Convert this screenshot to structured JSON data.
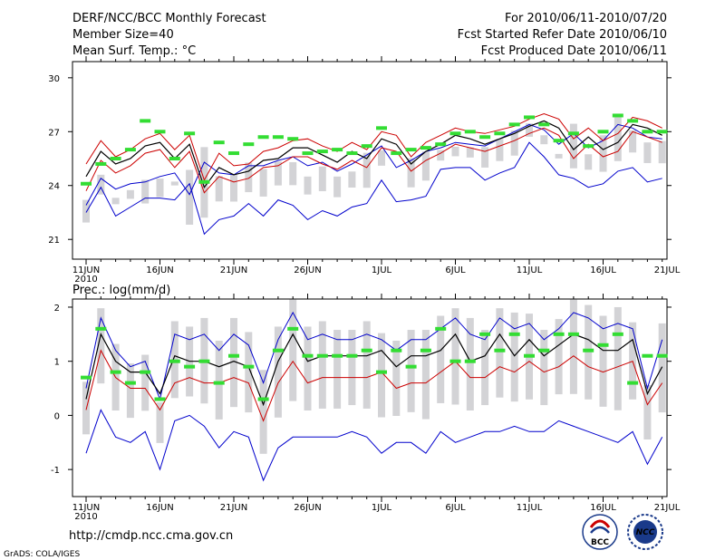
{
  "header": {
    "title": "DERF/NCC/BCC Monthly Forecast",
    "member_size": "Member Size=40",
    "variable": "Mean Surf. Temp.: °C",
    "period": "For 2010/06/11-2010/07/20",
    "started": "Fcst Started Refer Date 2010/06/10",
    "produced": "Fcst Produced Date 2010/06/11"
  },
  "url": "http://cmdp.ncc.cma.gov.cn",
  "credit": "GrADS: COLA/IGES",
  "logos": {
    "bcc": "BCC",
    "ncc": "NCC"
  },
  "colors": {
    "ensemble_mean": "#000000",
    "std_band": "#cc0000",
    "extremes": "#0000cc",
    "box": "#d3d3d6",
    "observed": "#33dd33"
  },
  "x_tick_labels": [
    "11JUN",
    "16JUN",
    "21JUN",
    "26JUN",
    "1JUL",
    "6JUL",
    "11JUL",
    "16JUL",
    "21JUL"
  ],
  "x_year_label": "2010",
  "chart_data": [
    {
      "type": "line",
      "title": "Mean Surf. Temp.: °C",
      "xlabel": "",
      "ylabel": "°C",
      "x": [
        "11JUN",
        "12JUN",
        "13JUN",
        "14JUN",
        "15JUN",
        "16JUN",
        "17JUN",
        "18JUN",
        "19JUN",
        "20JUN",
        "21JUN",
        "22JUN",
        "23JUN",
        "24JUN",
        "25JUN",
        "26JUN",
        "27JUN",
        "28JUN",
        "29JUN",
        "30JUN",
        "1JUL",
        "2JUL",
        "3JUL",
        "4JUL",
        "5JUL",
        "6JUL",
        "7JUL",
        "8JUL",
        "9JUL",
        "10JUL",
        "11JUL",
        "12JUL",
        "13JUL",
        "14JUL",
        "15JUL",
        "16JUL",
        "17JUL",
        "18JUL",
        "19JUL",
        "20JUL"
      ],
      "ylim": [
        19.9,
        30.9
      ],
      "yticks": [
        21,
        24,
        27,
        30
      ],
      "series": [
        {
          "name": "max",
          "values": [
            22.9,
            24.4,
            23.8,
            24.1,
            24.2,
            24.5,
            24.7,
            23.5,
            25.3,
            24.7,
            24.6,
            25.1,
            25.1,
            25.4,
            25.6,
            25.1,
            25.3,
            24.8,
            25.2,
            25.7,
            26.2,
            25.0,
            25.4,
            25.9,
            26.1,
            26.4,
            26.3,
            26.2,
            26.6,
            27.0,
            27.4,
            27.1,
            26.3,
            26.9,
            26.1,
            26.5,
            27.4,
            27.2,
            26.7,
            26.6
          ]
        },
        {
          "name": "mean_plus_sd",
          "values": [
            25.2,
            26.5,
            25.6,
            26.0,
            26.6,
            26.9,
            26.0,
            26.8,
            24.3,
            25.8,
            25.1,
            25.2,
            25.9,
            26.1,
            26.5,
            26.6,
            26.2,
            25.9,
            26.4,
            26.0,
            27.0,
            26.8,
            25.6,
            26.4,
            26.8,
            27.2,
            27.0,
            26.9,
            27.1,
            27.3,
            27.7,
            28.0,
            27.7,
            26.6,
            27.2,
            26.5,
            26.9,
            27.8,
            27.6,
            27.2
          ]
        },
        {
          "name": "ensemble_mean",
          "values": [
            24.5,
            25.9,
            25.2,
            25.5,
            26.2,
            26.4,
            25.5,
            26.3,
            23.9,
            25.0,
            24.6,
            24.8,
            25.4,
            25.5,
            26.1,
            26.1,
            25.7,
            25.3,
            25.9,
            25.5,
            26.6,
            26.3,
            25.2,
            25.9,
            26.3,
            26.8,
            26.6,
            26.3,
            26.6,
            26.9,
            27.3,
            27.6,
            27.2,
            26.0,
            26.7,
            26.0,
            26.4,
            27.4,
            27.2,
            26.8
          ]
        },
        {
          "name": "mean_minus_sd",
          "values": [
            23.7,
            25.4,
            24.7,
            25.1,
            25.8,
            26.0,
            25.0,
            25.9,
            23.6,
            24.5,
            24.2,
            24.4,
            25.0,
            25.1,
            25.6,
            25.6,
            25.2,
            24.9,
            25.4,
            25.0,
            26.1,
            25.9,
            24.8,
            25.4,
            25.8,
            26.3,
            26.1,
            25.9,
            26.2,
            26.5,
            26.9,
            27.2,
            26.8,
            25.5,
            26.3,
            25.6,
            25.9,
            27.0,
            26.7,
            26.4
          ]
        },
        {
          "name": "min",
          "values": [
            22.5,
            23.9,
            22.3,
            22.8,
            23.3,
            23.3,
            23.2,
            24.1,
            21.3,
            22.1,
            22.3,
            23.0,
            22.3,
            23.2,
            22.9,
            22.1,
            22.6,
            22.3,
            22.8,
            23.0,
            24.3,
            23.1,
            23.2,
            23.4,
            24.9,
            25.0,
            25.0,
            24.3,
            24.7,
            25.0,
            26.4,
            25.6,
            24.6,
            24.4,
            23.9,
            24.1,
            24.8,
            25.0,
            24.2,
            24.4
          ]
        },
        {
          "name": "observed",
          "values": [
            24.1,
            25.2,
            25.5,
            26.0,
            27.6,
            27.0,
            25.5,
            26.9,
            24.2,
            26.4,
            25.8,
            26.3,
            26.7,
            26.7,
            26.6,
            25.8,
            25.9,
            26.0,
            25.8,
            26.2,
            27.2,
            25.8,
            26.0,
            26.1,
            26.3,
            26.9,
            27.0,
            26.7,
            26.9,
            27.4,
            27.8,
            27.4,
            26.5,
            26.9,
            26.2,
            27.0,
            27.9,
            27.6,
            27.0,
            27.0
          ]
        }
      ]
    },
    {
      "type": "line",
      "title": "Prec.: log(mm/d)",
      "xlabel": "",
      "ylabel": "log(mm/d)",
      "x": [
        "11JUN",
        "12JUN",
        "13JUN",
        "14JUN",
        "15JUN",
        "16JUN",
        "17JUN",
        "18JUN",
        "19JUN",
        "20JUN",
        "21JUN",
        "22JUN",
        "23JUN",
        "24JUN",
        "25JUN",
        "26JUN",
        "27JUN",
        "28JUN",
        "29JUN",
        "30JUN",
        "1JUL",
        "2JUL",
        "3JUL",
        "4JUL",
        "5JUL",
        "6JUL",
        "7JUL",
        "8JUL",
        "9JUL",
        "10JUL",
        "11JUL",
        "12JUL",
        "13JUL",
        "14JUL",
        "15JUL",
        "16JUL",
        "17JUL",
        "18JUL",
        "19JUL",
        "20JUL"
      ],
      "ylim": [
        -1.5,
        2.15
      ],
      "yticks": [
        -1,
        0,
        1,
        2
      ],
      "series": [
        {
          "name": "max",
          "values": [
            0.5,
            1.8,
            1.2,
            0.9,
            1.0,
            0.3,
            1.5,
            1.4,
            1.5,
            1.2,
            1.5,
            1.3,
            0.6,
            1.4,
            1.9,
            1.4,
            1.5,
            1.4,
            1.4,
            1.5,
            1.4,
            1.2,
            1.4,
            1.4,
            1.6,
            1.8,
            1.5,
            1.4,
            1.8,
            1.6,
            1.7,
            1.4,
            1.6,
            1.9,
            1.8,
            1.6,
            1.7,
            1.6,
            0.5,
            1.4
          ]
        },
        {
          "name": "ensemble_mean",
          "values": [
            0.3,
            1.5,
            1.0,
            0.8,
            0.8,
            0.4,
            1.1,
            1.0,
            1.0,
            0.9,
            1.0,
            0.9,
            0.2,
            1.0,
            1.5,
            1.0,
            1.1,
            1.1,
            1.1,
            1.1,
            1.2,
            0.9,
            1.1,
            1.1,
            1.2,
            1.5,
            1.0,
            1.1,
            1.5,
            1.1,
            1.4,
            1.1,
            1.3,
            1.5,
            1.4,
            1.2,
            1.2,
            1.4,
            0.4,
            0.9
          ]
        },
        {
          "name": "mean_minus_sd",
          "values": [
            0.1,
            1.2,
            0.7,
            0.5,
            0.5,
            0.1,
            0.6,
            0.7,
            0.6,
            0.6,
            0.7,
            0.6,
            -0.1,
            0.6,
            1.0,
            0.6,
            0.7,
            0.7,
            0.7,
            0.7,
            0.8,
            0.5,
            0.6,
            0.6,
            0.8,
            1.0,
            0.7,
            0.7,
            0.9,
            0.8,
            1.0,
            0.8,
            0.9,
            1.1,
            0.9,
            0.8,
            0.9,
            1.0,
            0.2,
            0.6
          ]
        },
        {
          "name": "min",
          "values": [
            -0.7,
            0.1,
            -0.4,
            -0.5,
            -0.3,
            -1.0,
            -0.1,
            0.0,
            -0.2,
            -0.6,
            -0.3,
            -0.4,
            -1.2,
            -0.6,
            -0.4,
            -0.4,
            -0.4,
            -0.4,
            -0.3,
            -0.4,
            -0.7,
            -0.5,
            -0.5,
            -0.7,
            -0.3,
            -0.5,
            -0.4,
            -0.3,
            -0.3,
            -0.2,
            -0.3,
            -0.3,
            -0.1,
            -0.2,
            -0.3,
            -0.4,
            -0.5,
            -0.3,
            -0.9,
            -0.4
          ]
        },
        {
          "name": "observed",
          "values": [
            0.7,
            1.6,
            0.8,
            0.6,
            0.8,
            0.3,
            1.0,
            0.9,
            1.0,
            0.6,
            1.1,
            0.9,
            0.3,
            1.2,
            1.6,
            1.1,
            1.1,
            1.1,
            1.1,
            1.2,
            0.8,
            1.2,
            0.9,
            1.2,
            1.6,
            1.0,
            1.0,
            1.5,
            1.2,
            1.5,
            1.1,
            1.2,
            1.5,
            1.5,
            1.2,
            1.3,
            1.5,
            0.6,
            1.1,
            1.1
          ]
        }
      ]
    }
  ]
}
